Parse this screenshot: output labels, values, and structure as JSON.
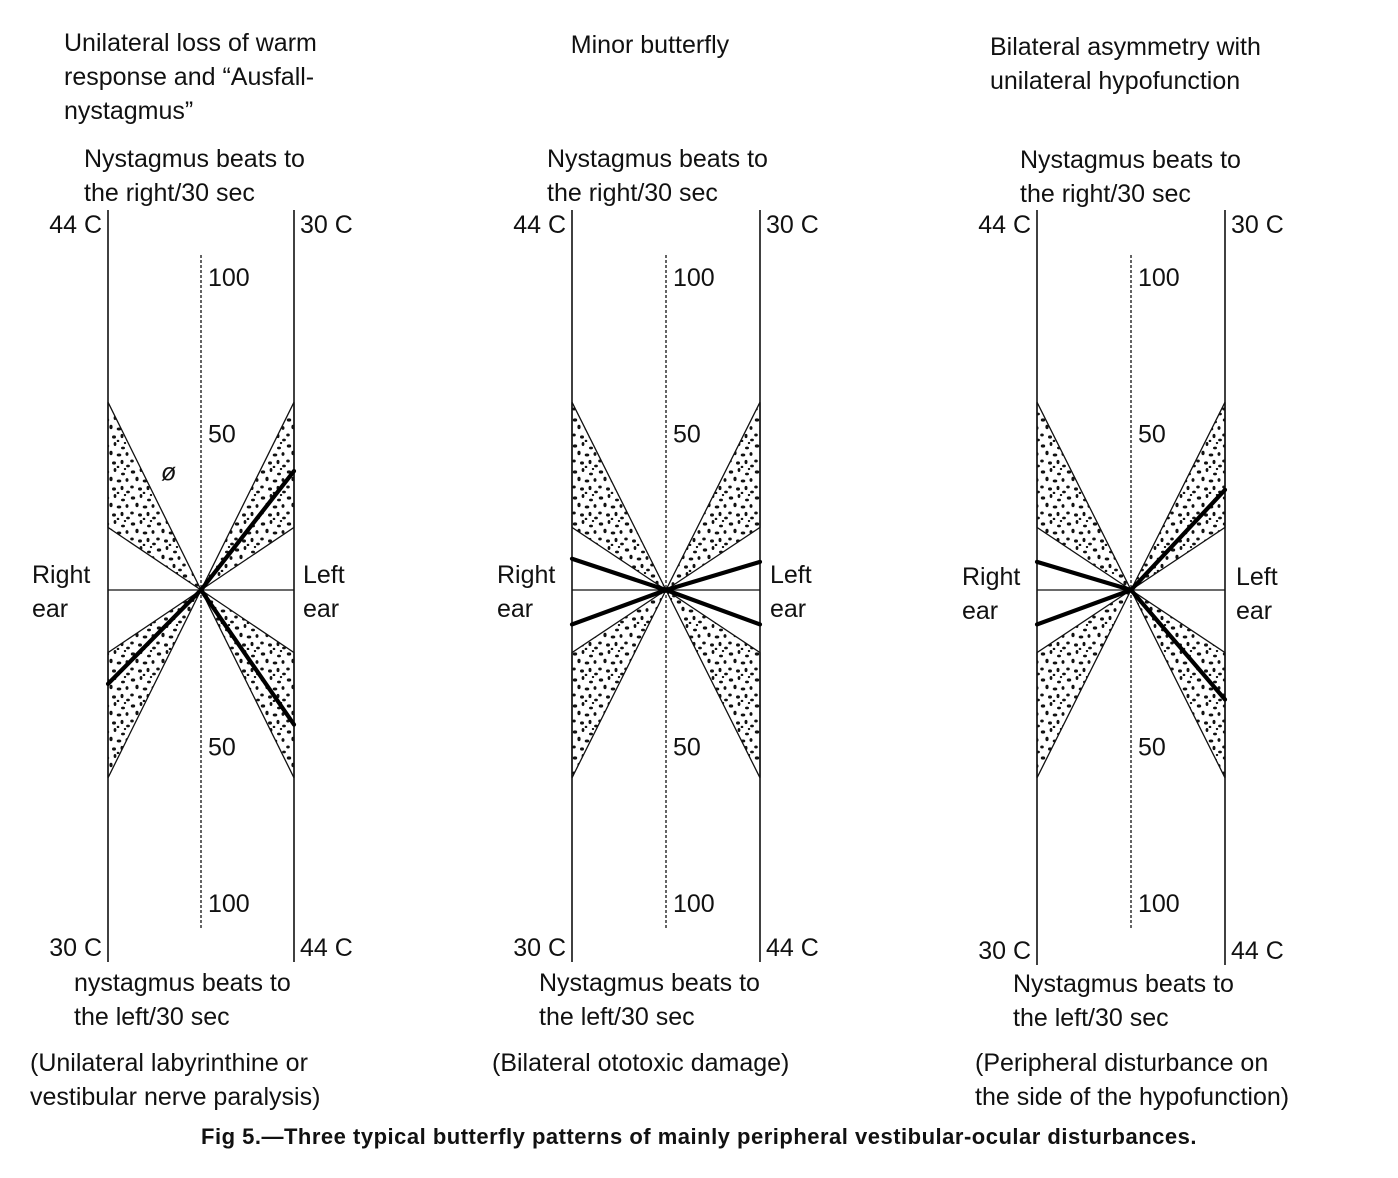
{
  "caption": "Fig 5.—Three typical butterfly patterns of mainly peripheral vestibular-ocular disturbances.",
  "labels": {
    "right_ear": "Right\near",
    "left_ear": "Left\near",
    "beats_right": "Nystagmus beats to\nthe right/30 sec",
    "temp_44": "44 C",
    "temp_30": "30 C",
    "scale_100": "100",
    "scale_50": "50",
    "null_symbol": "ø"
  },
  "panels": [
    {
      "title": "Unilateral loss of warm\nresponse and “Ausfall-\nnystagmus”",
      "beats_left": "nystagmus beats to\nthe left/30 sec",
      "diagnosis": "(Unilateral labyrinthine or\nvestibular nerve paralysis)",
      "responses": {
        "warm_right": 0,
        "cold_right": 30,
        "warm_left": 43,
        "cold_left": 38
      },
      "show_null": true
    },
    {
      "title": "Minor butterfly",
      "beats_left": "Nystagmus beats to\nthe left/30 sec",
      "diagnosis": "(Bilateral ototoxic damage)",
      "responses": {
        "warm_right": 10,
        "cold_right": 11,
        "warm_left": 11,
        "cold_left": 9
      },
      "show_null": false
    },
    {
      "title": "Bilateral asymmetry with\nunilateral hypofunction",
      "beats_left": "Nystagmus beats to\nthe left/30 sec",
      "diagnosis": "(Peripheral disturbance on\nthe side of the hypofunction)",
      "responses": {
        "warm_right": 9,
        "cold_right": 11,
        "warm_left": 35,
        "cold_left": 32
      },
      "show_null": false
    }
  ],
  "normal_range": {
    "min": 20,
    "max": 60,
    "unit": "beats/30 sec"
  }
}
